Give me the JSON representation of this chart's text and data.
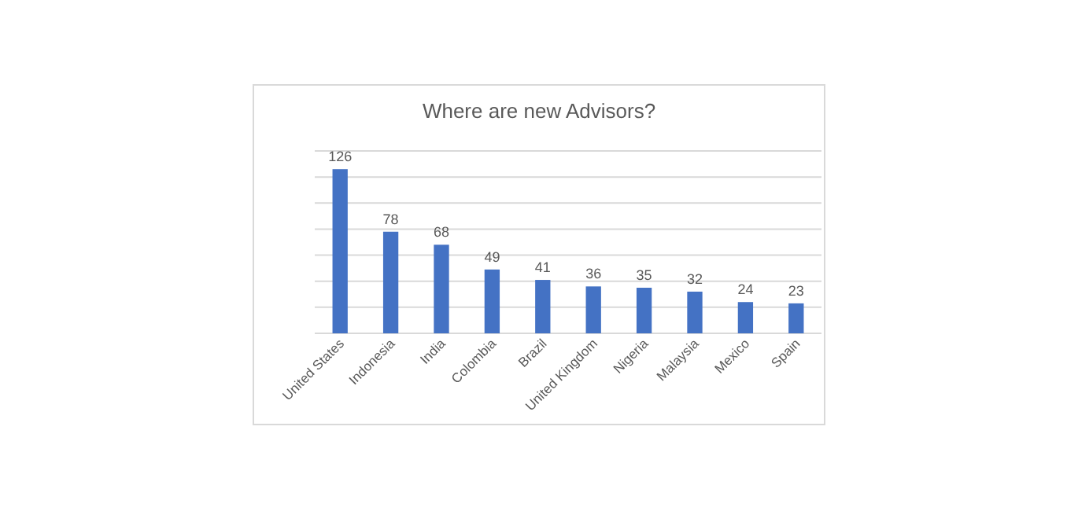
{
  "chart_data": {
    "type": "bar",
    "title": "Where are new Advisors?",
    "categories": [
      "United States",
      "Indonesia",
      "India",
      "Colombia",
      "Brazil",
      "United Kingdom",
      "Nigeria",
      "Malaysia",
      "Mexico",
      "Spain"
    ],
    "values": [
      126,
      78,
      68,
      49,
      41,
      36,
      35,
      32,
      24,
      23
    ],
    "color": "#4472c4",
    "data_labels": true,
    "grid": "y",
    "tick_labels": "x",
    "ylim": [
      0,
      140
    ],
    "yticks": [
      {
        "value": 0,
        "label": null
      },
      {
        "value": 20,
        "label": null
      },
      {
        "value": 40,
        "label": null
      },
      {
        "value": 60,
        "label": null
      },
      {
        "value": 80,
        "label": null
      },
      {
        "value": 100,
        "label": null
      },
      {
        "value": 120,
        "label": null
      },
      {
        "value": 140,
        "label": null
      }
    ]
  }
}
